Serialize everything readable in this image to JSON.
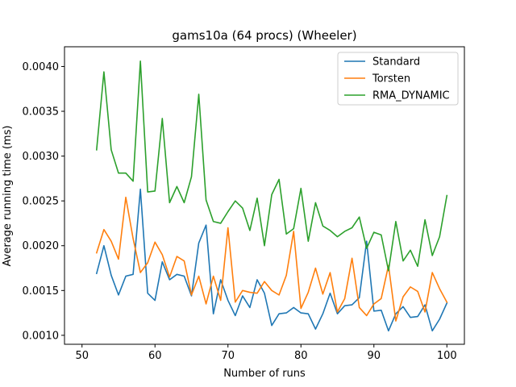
{
  "chart_data": {
    "type": "line",
    "title": "gams10a (64 procs) (Wheeler)",
    "xlabel": "Number of runs",
    "ylabel": "Average running time (ms)",
    "xlim": [
      47.6,
      102.4
    ],
    "ylim": [
      0.0009,
      0.00422
    ],
    "xticks": [
      50,
      60,
      70,
      80,
      90,
      100
    ],
    "xtick_labels": [
      "50",
      "60",
      "70",
      "80",
      "90",
      "100"
    ],
    "yticks": [
      0.001,
      0.0015,
      0.002,
      0.0025,
      0.003,
      0.0035,
      0.004
    ],
    "ytick_labels": [
      "0.0010",
      "0.0015",
      "0.0020",
      "0.0025",
      "0.0030",
      "0.0035",
      "0.0040"
    ],
    "grid": false,
    "legend_position": "top-right",
    "x": [
      52,
      53,
      54,
      55,
      56,
      57,
      58,
      59,
      60,
      61,
      62,
      63,
      64,
      65,
      66,
      67,
      68,
      69,
      70,
      71,
      72,
      73,
      74,
      75,
      76,
      77,
      78,
      79,
      80,
      81,
      82,
      83,
      84,
      85,
      86,
      87,
      88,
      89,
      90,
      91,
      92,
      93,
      94,
      95,
      96,
      97,
      98,
      99,
      100
    ],
    "series": [
      {
        "name": "Standard",
        "color": "#1f77b4",
        "values": [
          0.00169,
          0.002,
          0.00167,
          0.00145,
          0.00166,
          0.00168,
          0.00263,
          0.00147,
          0.00139,
          0.00182,
          0.00162,
          0.00168,
          0.00166,
          0.00144,
          0.00203,
          0.00223,
          0.00124,
          0.00162,
          0.00139,
          0.00122,
          0.00144,
          0.00131,
          0.00162,
          0.00147,
          0.00111,
          0.00124,
          0.00125,
          0.00131,
          0.00125,
          0.00124,
          0.00107,
          0.00124,
          0.00147,
          0.00124,
          0.00133,
          0.00134,
          0.00142,
          0.00205,
          0.00127,
          0.00128,
          0.00105,
          0.00124,
          0.00132,
          0.0012,
          0.00121,
          0.00134,
          0.00105,
          0.00118,
          0.00136
        ]
      },
      {
        "name": "Torsten",
        "color": "#ff7f0e",
        "values": [
          0.00192,
          0.00218,
          0.00205,
          0.00185,
          0.00254,
          0.00208,
          0.0017,
          0.00181,
          0.00204,
          0.0019,
          0.00165,
          0.00188,
          0.00183,
          0.00145,
          0.00166,
          0.00135,
          0.00166,
          0.00139,
          0.0022,
          0.00137,
          0.0015,
          0.00148,
          0.00147,
          0.0016,
          0.0015,
          0.00145,
          0.00167,
          0.00216,
          0.0013,
          0.00148,
          0.00175,
          0.00146,
          0.0017,
          0.00126,
          0.00141,
          0.00186,
          0.00131,
          0.00122,
          0.00135,
          0.00141,
          0.00178,
          0.00116,
          0.00143,
          0.00154,
          0.00149,
          0.00126,
          0.0017,
          0.00152,
          0.00137
        ]
      },
      {
        "name": "RMA_DYNAMIC",
        "color": "#2ca02c",
        "values": [
          0.00307,
          0.00394,
          0.00307,
          0.00281,
          0.00281,
          0.00272,
          0.00406,
          0.0026,
          0.00261,
          0.00342,
          0.00248,
          0.00266,
          0.00248,
          0.00277,
          0.00369,
          0.00251,
          0.00227,
          0.00225,
          0.00238,
          0.0025,
          0.00242,
          0.00217,
          0.00253,
          0.002,
          0.00257,
          0.00274,
          0.00213,
          0.00219,
          0.00264,
          0.00205,
          0.00248,
          0.00222,
          0.00217,
          0.0021,
          0.00216,
          0.0022,
          0.00232,
          0.00197,
          0.00215,
          0.00212,
          0.00172,
          0.00227,
          0.00183,
          0.00195,
          0.00177,
          0.00229,
          0.00189,
          0.0021,
          0.00256
        ]
      }
    ]
  }
}
